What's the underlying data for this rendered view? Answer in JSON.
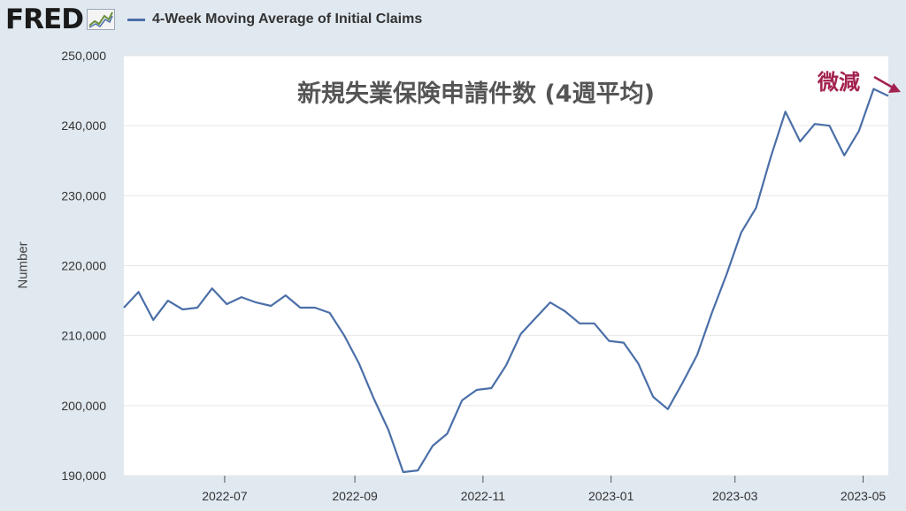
{
  "header": {
    "logo_text": "FRED",
    "legend_label": "4-Week Moving Average of Initial Claims",
    "series_color": "#4b6fa8"
  },
  "chart_data": {
    "type": "line",
    "title": "新規失業保険申請件数 (4週平均)",
    "annotation": "微減",
    "annotation_color": "#a3224f",
    "xlabel": "",
    "ylabel": "Number",
    "ylim": [
      190000,
      250000
    ],
    "y_ticks": [
      190000,
      200000,
      210000,
      220000,
      230000,
      240000,
      250000
    ],
    "y_tick_labels": [
      "190,000",
      "200,000",
      "210,000",
      "220,000",
      "230,000",
      "240,000",
      "250,000"
    ],
    "x_range": [
      "2022-05-14",
      "2023-05-13"
    ],
    "x_ticks": [
      "2022-07-01",
      "2022-09-01",
      "2022-11-01",
      "2023-01-01",
      "2023-03-01",
      "2023-05-01"
    ],
    "x_tick_labels": [
      "2022-07",
      "2022-09",
      "2022-11",
      "2023-01",
      "2023-03",
      "2023-05"
    ],
    "grid": true,
    "series": [
      {
        "name": "4-Week Moving Average of Initial Claims",
        "x": [
          "2022-05-14",
          "2022-05-21",
          "2022-05-28",
          "2022-06-04",
          "2022-06-11",
          "2022-06-18",
          "2022-06-25",
          "2022-07-02",
          "2022-07-09",
          "2022-07-16",
          "2022-07-23",
          "2022-07-30",
          "2022-08-06",
          "2022-08-13",
          "2022-08-20",
          "2022-08-27",
          "2022-09-03",
          "2022-09-10",
          "2022-09-17",
          "2022-09-24",
          "2022-10-01",
          "2022-10-08",
          "2022-10-15",
          "2022-10-22",
          "2022-10-29",
          "2022-11-05",
          "2022-11-12",
          "2022-11-19",
          "2022-11-26",
          "2022-12-03",
          "2022-12-10",
          "2022-12-17",
          "2022-12-24",
          "2022-12-31",
          "2023-01-07",
          "2023-01-14",
          "2023-01-21",
          "2023-01-28",
          "2023-02-04",
          "2023-02-11",
          "2023-02-18",
          "2023-02-25",
          "2023-03-04",
          "2023-03-11",
          "2023-03-18",
          "2023-03-25",
          "2023-04-01",
          "2023-04-08",
          "2023-04-15",
          "2023-04-22",
          "2023-04-29",
          "2023-05-06",
          "2023-05-13"
        ],
        "values": [
          214000,
          216250,
          212250,
          215000,
          213750,
          214000,
          216750,
          214500,
          215500,
          214750,
          214250,
          215750,
          214000,
          214000,
          213250,
          210000,
          206000,
          201000,
          196500,
          190500,
          190750,
          194250,
          196000,
          200750,
          202250,
          202500,
          205750,
          210250,
          212500,
          214750,
          213500,
          211750,
          211750,
          209250,
          209000,
          206000,
          201250,
          199500,
          203250,
          207250,
          213250,
          218750,
          224750,
          228250,
          235500,
          242000,
          237750,
          240250,
          240000,
          235750,
          239250,
          245250,
          244250
        ]
      }
    ]
  }
}
